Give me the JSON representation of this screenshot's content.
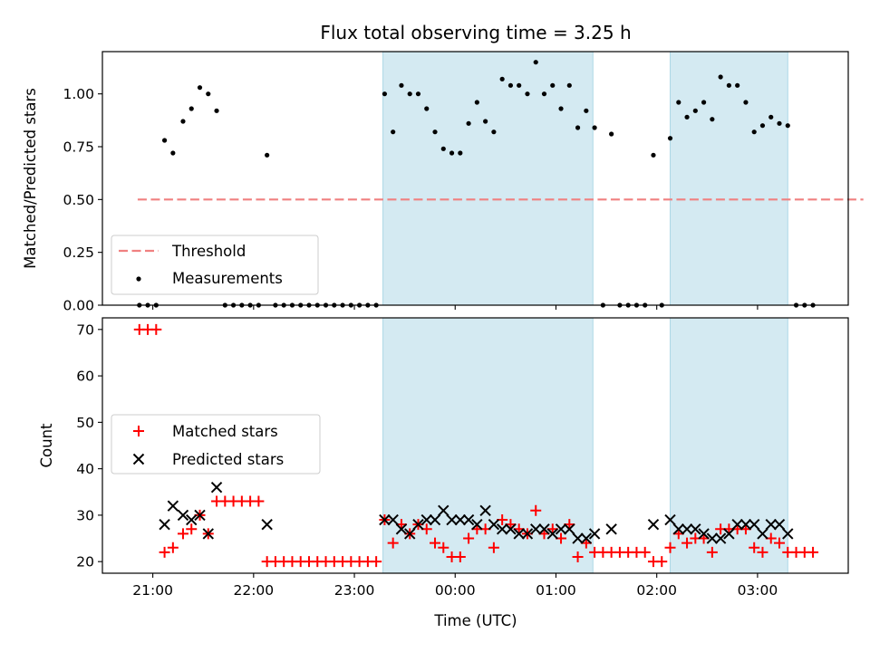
{
  "chart_data": [
    {
      "type": "scatter",
      "title": "Flux total observing time = 3.25 h",
      "xlabel": "",
      "ylabel": "Matched/Predicted stars",
      "xlim": [
        "20:30",
        "03:54"
      ],
      "ylim": [
        0,
        1.2
      ],
      "x_ticks": [
        "21:00",
        "22:00",
        "23:00",
        "00:00",
        "01:00",
        "02:00",
        "03:00"
      ],
      "y_ticks": [
        "0.00",
        "0.25",
        "0.50",
        "0.75",
        "1.00"
      ],
      "shaded_regions": [
        [
          "23:17",
          "01:22"
        ],
        [
          "02:08",
          "03:18"
        ]
      ],
      "shade_color": "#add8e6",
      "threshold": {
        "name": "Threshold",
        "value": 0.5,
        "x_range": [
          "20:51",
          "04:03"
        ],
        "color": "#f08080"
      },
      "series": [
        {
          "name": "Measurements",
          "color": "#000000",
          "points": [
            [
              "20:52",
              0
            ],
            [
              "20:57",
              0
            ],
            [
              "21:02",
              0
            ],
            [
              "21:07",
              0.78
            ],
            [
              "21:12",
              0.72
            ],
            [
              "21:18",
              0.87
            ],
            [
              "21:23",
              0.93
            ],
            [
              "21:28",
              1.03
            ],
            [
              "21:33",
              1.0
            ],
            [
              "21:38",
              0.92
            ],
            [
              "21:43",
              0
            ],
            [
              "21:48",
              0
            ],
            [
              "21:53",
              0
            ],
            [
              "21:58",
              0
            ],
            [
              "22:03",
              0
            ],
            [
              "22:08",
              0.71
            ],
            [
              "22:13",
              0
            ],
            [
              "22:18",
              0
            ],
            [
              "22:23",
              0
            ],
            [
              "22:28",
              0
            ],
            [
              "22:33",
              0
            ],
            [
              "22:38",
              0
            ],
            [
              "22:43",
              0
            ],
            [
              "22:48",
              0
            ],
            [
              "22:53",
              0
            ],
            [
              "22:58",
              0
            ],
            [
              "23:03",
              0
            ],
            [
              "23:08",
              0
            ],
            [
              "23:13",
              0
            ],
            [
              "23:18",
              1.0
            ],
            [
              "23:23",
              0.82
            ],
            [
              "23:28",
              1.04
            ],
            [
              "23:33",
              1.0
            ],
            [
              "23:38",
              1.0
            ],
            [
              "23:43",
              0.93
            ],
            [
              "23:48",
              0.82
            ],
            [
              "23:53",
              0.74
            ],
            [
              "23:58",
              0.72
            ],
            [
              "00:03",
              0.72
            ],
            [
              "00:08",
              0.86
            ],
            [
              "00:13",
              0.96
            ],
            [
              "00:18",
              0.87
            ],
            [
              "00:23",
              0.82
            ],
            [
              "00:28",
              1.07
            ],
            [
              "00:33",
              1.04
            ],
            [
              "00:38",
              1.04
            ],
            [
              "00:43",
              1.0
            ],
            [
              "00:48",
              1.15
            ],
            [
              "00:53",
              1.0
            ],
            [
              "00:58",
              1.04
            ],
            [
              "01:03",
              0.93
            ],
            [
              "01:08",
              1.04
            ],
            [
              "01:13",
              0.84
            ],
            [
              "01:18",
              0.92
            ],
            [
              "01:23",
              0.84
            ],
            [
              "01:28",
              0
            ],
            [
              "01:33",
              0.81
            ],
            [
              "01:38",
              0
            ],
            [
              "01:43",
              0
            ],
            [
              "01:48",
              0
            ],
            [
              "01:53",
              0
            ],
            [
              "01:58",
              0.71
            ],
            [
              "02:03",
              0
            ],
            [
              "02:08",
              0.79
            ],
            [
              "02:13",
              0.96
            ],
            [
              "02:18",
              0.89
            ],
            [
              "02:23",
              0.92
            ],
            [
              "02:28",
              0.96
            ],
            [
              "02:33",
              0.88
            ],
            [
              "02:38",
              1.08
            ],
            [
              "02:43",
              1.04
            ],
            [
              "02:48",
              1.04
            ],
            [
              "02:53",
              0.96
            ],
            [
              "02:58",
              0.82
            ],
            [
              "03:03",
              0.85
            ],
            [
              "03:08",
              0.89
            ],
            [
              "03:13",
              0.86
            ],
            [
              "03:18",
              0.85
            ],
            [
              "03:23",
              0
            ],
            [
              "03:28",
              0
            ],
            [
              "03:33",
              0
            ]
          ]
        }
      ],
      "legend": {
        "placement": "lower-left",
        "entries": [
          "Threshold",
          "Measurements"
        ]
      }
    },
    {
      "type": "scatter",
      "title": "",
      "xlabel": "Time (UTC)",
      "ylabel": "Count",
      "xlim": [
        "20:30",
        "03:54"
      ],
      "ylim": [
        17.5,
        72.5
      ],
      "x_ticks": [
        "21:00",
        "22:00",
        "23:00",
        "00:00",
        "01:00",
        "02:00",
        "03:00"
      ],
      "y_ticks": [
        "20",
        "30",
        "40",
        "50",
        "60",
        "70"
      ],
      "shaded_regions": [
        [
          "23:17",
          "01:22"
        ],
        [
          "02:08",
          "03:18"
        ]
      ],
      "shade_color": "#add8e6",
      "series": [
        {
          "name": "Matched stars",
          "marker": "plus",
          "color": "#ff0000",
          "points": [
            [
              "20:52",
              70
            ],
            [
              "20:57",
              70
            ],
            [
              "21:02",
              70
            ],
            [
              "21:07",
              22
            ],
            [
              "21:12",
              23
            ],
            [
              "21:18",
              26
            ],
            [
              "21:23",
              27
            ],
            [
              "21:28",
              30
            ],
            [
              "21:33",
              26
            ],
            [
              "21:38",
              33
            ],
            [
              "21:43",
              33
            ],
            [
              "21:48",
              33
            ],
            [
              "21:53",
              33
            ],
            [
              "21:58",
              33
            ],
            [
              "22:03",
              33
            ],
            [
              "22:08",
              20
            ],
            [
              "22:13",
              20
            ],
            [
              "22:18",
              20
            ],
            [
              "22:23",
              20
            ],
            [
              "22:28",
              20
            ],
            [
              "22:33",
              20
            ],
            [
              "22:38",
              20
            ],
            [
              "22:43",
              20
            ],
            [
              "22:48",
              20
            ],
            [
              "22:53",
              20
            ],
            [
              "22:58",
              20
            ],
            [
              "23:03",
              20
            ],
            [
              "23:08",
              20
            ],
            [
              "23:13",
              20
            ],
            [
              "23:18",
              29
            ],
            [
              "23:23",
              24
            ],
            [
              "23:28",
              28
            ],
            [
              "23:33",
              26
            ],
            [
              "23:38",
              28
            ],
            [
              "23:43",
              27
            ],
            [
              "23:48",
              24
            ],
            [
              "23:53",
              23
            ],
            [
              "23:58",
              21
            ],
            [
              "00:03",
              21
            ],
            [
              "00:08",
              25
            ],
            [
              "00:13",
              27
            ],
            [
              "00:18",
              27
            ],
            [
              "00:23",
              23
            ],
            [
              "00:28",
              29
            ],
            [
              "00:33",
              28
            ],
            [
              "00:38",
              27
            ],
            [
              "00:43",
              26
            ],
            [
              "00:48",
              31
            ],
            [
              "00:53",
              26
            ],
            [
              "00:58",
              27
            ],
            [
              "01:03",
              25
            ],
            [
              "01:08",
              28
            ],
            [
              "01:13",
              21
            ],
            [
              "01:18",
              24
            ],
            [
              "01:23",
              22
            ],
            [
              "01:28",
              22
            ],
            [
              "01:33",
              22
            ],
            [
              "01:38",
              22
            ],
            [
              "01:43",
              22
            ],
            [
              "01:48",
              22
            ],
            [
              "01:53",
              22
            ],
            [
              "01:58",
              20
            ],
            [
              "02:03",
              20
            ],
            [
              "02:08",
              23
            ],
            [
              "02:13",
              26
            ],
            [
              "02:18",
              24
            ],
            [
              "02:23",
              25
            ],
            [
              "02:28",
              25
            ],
            [
              "02:33",
              22
            ],
            [
              "02:38",
              27
            ],
            [
              "02:43",
              27
            ],
            [
              "02:48",
              27
            ],
            [
              "02:53",
              27
            ],
            [
              "02:58",
              23
            ],
            [
              "03:03",
              22
            ],
            [
              "03:08",
              25
            ],
            [
              "03:13",
              24
            ],
            [
              "03:18",
              22
            ],
            [
              "03:23",
              22
            ],
            [
              "03:28",
              22
            ],
            [
              "03:33",
              22
            ]
          ]
        },
        {
          "name": "Predicted stars",
          "marker": "x",
          "color": "#000000",
          "points": [
            [
              "21:07",
              28
            ],
            [
              "21:12",
              32
            ],
            [
              "21:18",
              30
            ],
            [
              "21:23",
              29
            ],
            [
              "21:28",
              30
            ],
            [
              "21:33",
              26
            ],
            [
              "21:38",
              36
            ],
            [
              "22:08",
              28
            ],
            [
              "23:18",
              29
            ],
            [
              "23:23",
              29
            ],
            [
              "23:28",
              27
            ],
            [
              "23:33",
              26
            ],
            [
              "23:38",
              28
            ],
            [
              "23:43",
              29
            ],
            [
              "23:48",
              29
            ],
            [
              "23:53",
              31
            ],
            [
              "23:58",
              29
            ],
            [
              "00:03",
              29
            ],
            [
              "00:08",
              29
            ],
            [
              "00:13",
              28
            ],
            [
              "00:18",
              31
            ],
            [
              "00:23",
              28
            ],
            [
              "00:28",
              27
            ],
            [
              "00:33",
              27
            ],
            [
              "00:38",
              26
            ],
            [
              "00:43",
              26
            ],
            [
              "00:48",
              27
            ],
            [
              "00:53",
              27
            ],
            [
              "00:58",
              26
            ],
            [
              "01:03",
              27
            ],
            [
              "01:08",
              27
            ],
            [
              "01:13",
              25
            ],
            [
              "01:18",
              25
            ],
            [
              "01:23",
              26
            ],
            [
              "01:33",
              27
            ],
            [
              "01:58",
              28
            ],
            [
              "02:08",
              29
            ],
            [
              "02:13",
              27
            ],
            [
              "02:18",
              27
            ],
            [
              "02:23",
              27
            ],
            [
              "02:28",
              26
            ],
            [
              "02:33",
              25
            ],
            [
              "02:38",
              25
            ],
            [
              "02:43",
              26
            ],
            [
              "02:48",
              28
            ],
            [
              "02:53",
              28
            ],
            [
              "02:58",
              28
            ],
            [
              "03:03",
              26
            ],
            [
              "03:08",
              28
            ],
            [
              "03:13",
              28
            ],
            [
              "03:18",
              26
            ]
          ]
        }
      ],
      "legend": {
        "placement": "center-left",
        "entries": [
          "Matched stars",
          "Predicted stars"
        ]
      }
    }
  ]
}
